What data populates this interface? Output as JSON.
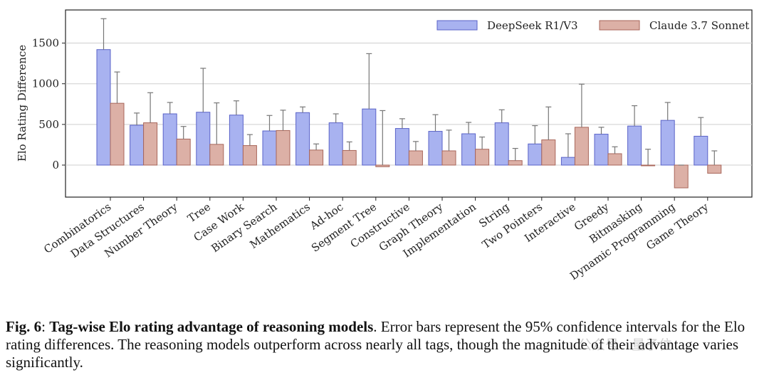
{
  "chart_data": {
    "type": "bar",
    "ylabel": "Elo Rating Difference",
    "ylim": [
      -300,
      1900
    ],
    "yticks": [
      0,
      500,
      1000,
      1500
    ],
    "grid": "horizontal",
    "legend_position": "top-right",
    "categories": [
      "Combinatorics",
      "Data Structures",
      "Number Theory",
      "Tree",
      "Case Work",
      "Binary Search",
      "Mathematics",
      "Ad-hoc",
      "Segment Tree",
      "Constructive",
      "Graph Theory",
      "Implementation",
      "String",
      "Two Pointers",
      "Interactive",
      "Greedy",
      "Bitmasking",
      "Dynamic Programming",
      "Game Theory"
    ],
    "series": [
      {
        "name": "DeepSeek R1/V3",
        "fill": "#a8b2f0",
        "edge": "#5a63c8",
        "values": [
          1420,
          490,
          630,
          650,
          615,
          420,
          645,
          520,
          690,
          450,
          415,
          385,
          520,
          260,
          95,
          380,
          480,
          550,
          355
        ],
        "upper": [
          1800,
          640,
          770,
          1190,
          790,
          610,
          715,
          630,
          1370,
          570,
          620,
          525,
          680,
          485,
          385,
          465,
          730,
          770,
          585
        ]
      },
      {
        "name": "Claude 3.7 Sonnet",
        "fill": "#dcb0a6",
        "edge": "#a8665a",
        "values": [
          760,
          520,
          320,
          255,
          240,
          425,
          185,
          180,
          -20,
          175,
          175,
          195,
          55,
          310,
          465,
          140,
          0,
          -280,
          -100
        ],
        "upper": [
          1145,
          890,
          475,
          765,
          375,
          675,
          260,
          285,
          670,
          290,
          430,
          345,
          205,
          715,
          995,
          225,
          195,
          0,
          175
        ]
      }
    ]
  },
  "caption": {
    "label": "Fig. 6",
    "sep": ": ",
    "title": "Tag-wise Elo rating advantage of reasoning models",
    "body": ". Error bars represent the 95% confidence intervals for the Elo rating differences. The reasoning models outperform across nearly all tags, though the magnitude of their advantage varies significantly."
  },
  "watermark": "公众号 · 量子位"
}
